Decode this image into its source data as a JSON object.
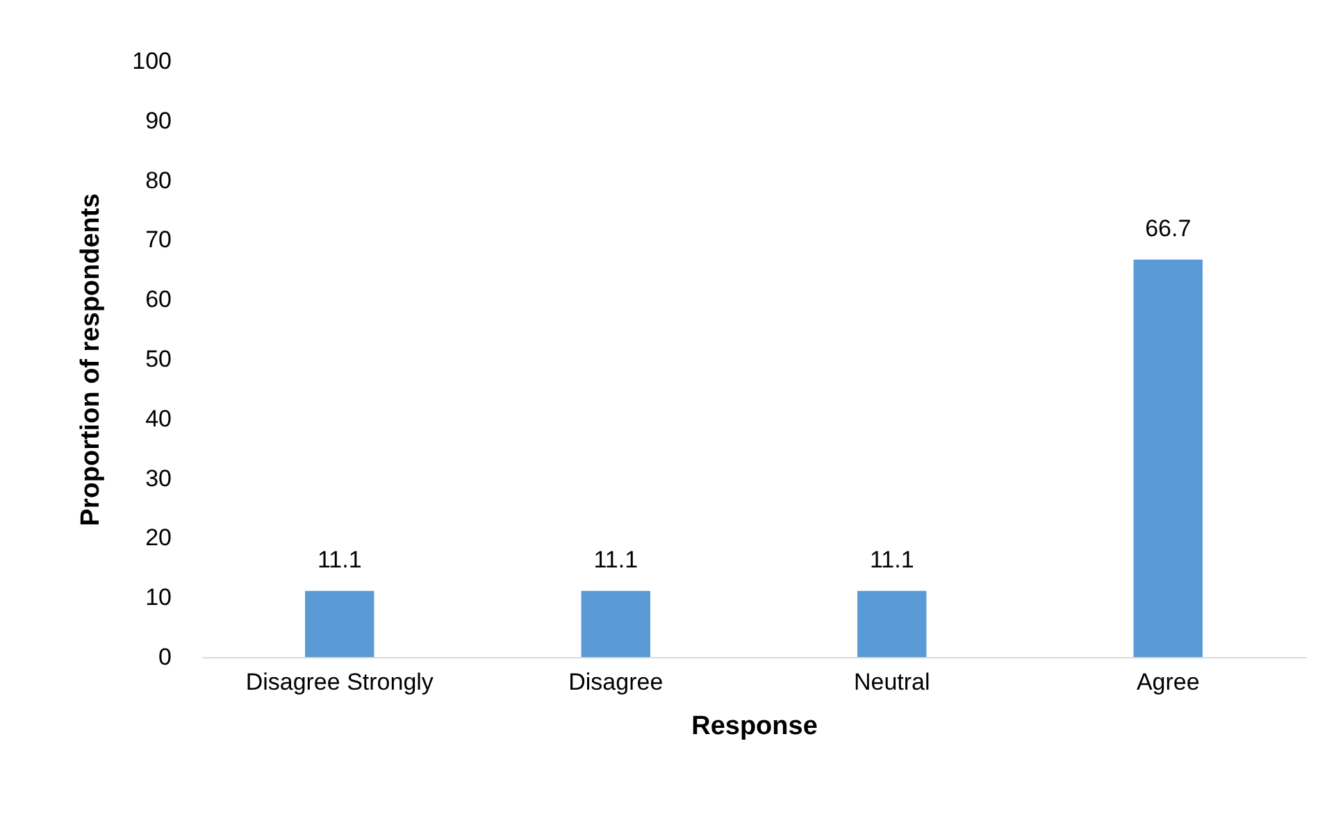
{
  "chart_data": {
    "type": "bar",
    "xlabel": "Response",
    "ylabel": "Proportion of respondents",
    "categories": [
      "Disagree Strongly",
      "Disagree",
      "Neutral",
      "Agree"
    ],
    "values": [
      11.1,
      11.1,
      11.1,
      66.7
    ],
    "color": "#5b9bd5",
    "ylim": [
      0,
      100
    ],
    "yticks": [
      0,
      10,
      20,
      30,
      40,
      50,
      60,
      70,
      80,
      90,
      100
    ],
    "data_labels": true
  }
}
